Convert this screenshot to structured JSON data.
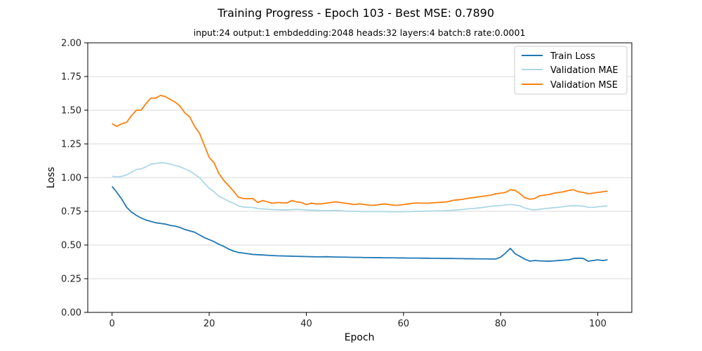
{
  "chart_data": {
    "type": "line",
    "title": "Training Progress - Epoch 103 - Best MSE: 0.7890",
    "subtitle": "input:24 output:1 embdedding:2048 heads:32 layers:4 batch:8 rate:0.0001",
    "xlabel": "Epoch",
    "ylabel": "Loss",
    "xlim": [
      -5,
      107
    ],
    "ylim": [
      0,
      2.0
    ],
    "xticks": [
      0,
      20,
      40,
      60,
      80,
      100
    ],
    "xtick_labels": [
      "0",
      "20",
      "40",
      "60",
      "80",
      "100"
    ],
    "yticks": [
      0,
      0.25,
      0.5,
      0.75,
      1.0,
      1.25,
      1.5,
      1.75,
      2.0
    ],
    "ytick_labels": [
      "0.00",
      "0.25",
      "0.50",
      "0.75",
      "1.00",
      "1.25",
      "1.50",
      "1.75",
      "2.00"
    ],
    "grid": "horizontal",
    "legend_position": "top-right",
    "series": [
      {
        "name": "Train Loss",
        "color": "#1f77b4",
        "values": [
          0.935,
          0.89,
          0.84,
          0.78,
          0.745,
          0.72,
          0.7,
          0.685,
          0.675,
          0.665,
          0.66,
          0.655,
          0.645,
          0.64,
          0.63,
          0.615,
          0.605,
          0.595,
          0.575,
          0.555,
          0.54,
          0.525,
          0.505,
          0.49,
          0.47,
          0.455,
          0.445,
          0.44,
          0.435,
          0.43,
          0.428,
          0.426,
          0.424,
          0.422,
          0.42,
          0.419,
          0.418,
          0.417,
          0.416,
          0.415,
          0.414,
          0.413,
          0.412,
          0.412,
          0.413,
          0.412,
          0.411,
          0.41,
          0.41,
          0.409,
          0.408,
          0.408,
          0.407,
          0.407,
          0.406,
          0.406,
          0.405,
          0.405,
          0.405,
          0.404,
          0.404,
          0.403,
          0.403,
          0.403,
          0.402,
          0.402,
          0.401,
          0.401,
          0.4,
          0.4,
          0.4,
          0.399,
          0.399,
          0.398,
          0.398,
          0.397,
          0.397,
          0.397,
          0.396,
          0.396,
          0.41,
          0.44,
          0.475,
          0.435,
          0.415,
          0.395,
          0.38,
          0.385,
          0.382,
          0.381,
          0.38,
          0.382,
          0.385,
          0.388,
          0.39,
          0.4,
          0.402,
          0.4,
          0.38,
          0.385,
          0.39,
          0.385,
          0.39
        ]
      },
      {
        "name": "Validation MAE",
        "color": "#add8e6",
        "values": [
          1.01,
          1.005,
          1.01,
          1.02,
          1.04,
          1.06,
          1.065,
          1.08,
          1.1,
          1.105,
          1.11,
          1.108,
          1.1,
          1.09,
          1.08,
          1.065,
          1.05,
          1.025,
          1.0,
          0.96,
          0.92,
          0.895,
          0.86,
          0.845,
          0.825,
          0.81,
          0.79,
          0.782,
          0.78,
          0.778,
          0.77,
          0.768,
          0.765,
          0.763,
          0.762,
          0.76,
          0.76,
          0.762,
          0.765,
          0.763,
          0.76,
          0.758,
          0.758,
          0.756,
          0.755,
          0.755,
          0.757,
          0.755,
          0.752,
          0.75,
          0.75,
          0.749,
          0.748,
          0.748,
          0.748,
          0.748,
          0.748,
          0.747,
          0.747,
          0.746,
          0.747,
          0.748,
          0.749,
          0.75,
          0.751,
          0.751,
          0.752,
          0.753,
          0.754,
          0.755,
          0.757,
          0.76,
          0.763,
          0.767,
          0.77,
          0.773,
          0.777,
          0.782,
          0.787,
          0.79,
          0.793,
          0.797,
          0.8,
          0.797,
          0.79,
          0.775,
          0.765,
          0.76,
          0.765,
          0.77,
          0.773,
          0.777,
          0.78,
          0.785,
          0.79,
          0.792,
          0.79,
          0.788,
          0.78,
          0.78,
          0.783,
          0.787,
          0.79
        ]
      },
      {
        "name": "Validation MSE",
        "color": "#ff7f0e",
        "values": [
          1.4,
          1.38,
          1.4,
          1.41,
          1.46,
          1.5,
          1.5,
          1.55,
          1.59,
          1.59,
          1.61,
          1.6,
          1.58,
          1.56,
          1.53,
          1.48,
          1.45,
          1.38,
          1.33,
          1.24,
          1.15,
          1.11,
          1.03,
          0.98,
          0.94,
          0.9,
          0.855,
          0.845,
          0.843,
          0.845,
          0.815,
          0.83,
          0.82,
          0.81,
          0.815,
          0.813,
          0.812,
          0.83,
          0.82,
          0.815,
          0.8,
          0.81,
          0.805,
          0.805,
          0.81,
          0.815,
          0.82,
          0.815,
          0.81,
          0.805,
          0.8,
          0.805,
          0.8,
          0.795,
          0.795,
          0.8,
          0.805,
          0.8,
          0.795,
          0.795,
          0.8,
          0.805,
          0.81,
          0.812,
          0.81,
          0.81,
          0.813,
          0.815,
          0.818,
          0.82,
          0.83,
          0.835,
          0.838,
          0.845,
          0.85,
          0.855,
          0.86,
          0.865,
          0.87,
          0.88,
          0.885,
          0.89,
          0.91,
          0.905,
          0.88,
          0.85,
          0.84,
          0.845,
          0.865,
          0.87,
          0.875,
          0.885,
          0.89,
          0.895,
          0.905,
          0.91,
          0.895,
          0.89,
          0.88,
          0.885,
          0.89,
          0.895,
          0.9
        ]
      }
    ]
  }
}
